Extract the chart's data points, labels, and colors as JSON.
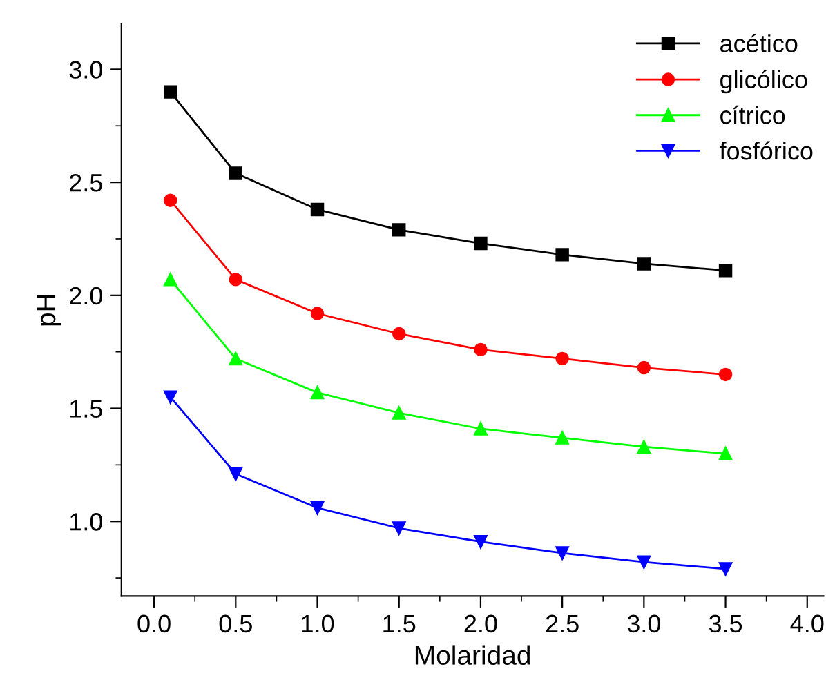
{
  "chart_data": {
    "type": "line",
    "xlabel": "Molaridad",
    "ylabel": "pH",
    "x": [
      0.1,
      0.5,
      1.0,
      1.5,
      2.0,
      2.5,
      3.0,
      3.5
    ],
    "series": [
      {
        "name": "acético",
        "color": "#000000",
        "marker": "square",
        "values": [
          2.9,
          2.54,
          2.38,
          2.29,
          2.23,
          2.18,
          2.14,
          2.11
        ]
      },
      {
        "name": "glicólico",
        "color": "#ff0000",
        "marker": "circle",
        "values": [
          2.42,
          2.07,
          1.92,
          1.83,
          1.76,
          1.72,
          1.68,
          1.65
        ]
      },
      {
        "name": "cítrico",
        "color": "#00ff00",
        "marker": "triangle",
        "values": [
          2.07,
          1.72,
          1.57,
          1.48,
          1.41,
          1.37,
          1.33,
          1.3
        ]
      },
      {
        "name": "fosfórico",
        "color": "#0000ff",
        "marker": "triangle_down",
        "values": [
          1.55,
          1.21,
          1.06,
          0.97,
          0.91,
          0.86,
          0.82,
          0.79
        ]
      }
    ],
    "xlim": [
      -0.2,
      4.1
    ],
    "ylim": [
      0.67,
      3.2
    ],
    "xticks": [
      {
        "value": 0.0,
        "label": "0.0"
      },
      {
        "value": 0.5,
        "label": "0.5"
      },
      {
        "value": 1.0,
        "label": "1.0"
      },
      {
        "value": 1.5,
        "label": "1.5"
      },
      {
        "value": 2.0,
        "label": "2.0"
      },
      {
        "value": 2.5,
        "label": "2.5"
      },
      {
        "value": 3.0,
        "label": "3.0"
      },
      {
        "value": 3.5,
        "label": "3.5"
      },
      {
        "value": 4.0,
        "label": "4.0"
      }
    ],
    "yticks": [
      {
        "value": 1.0,
        "label": "1.0"
      },
      {
        "value": 1.5,
        "label": "1.5"
      },
      {
        "value": 2.0,
        "label": "2.0"
      },
      {
        "value": 2.5,
        "label": "2.5"
      },
      {
        "value": 3.0,
        "label": "3.0"
      }
    ],
    "grid": false,
    "legend": "top right",
    "line_style": "solid"
  }
}
